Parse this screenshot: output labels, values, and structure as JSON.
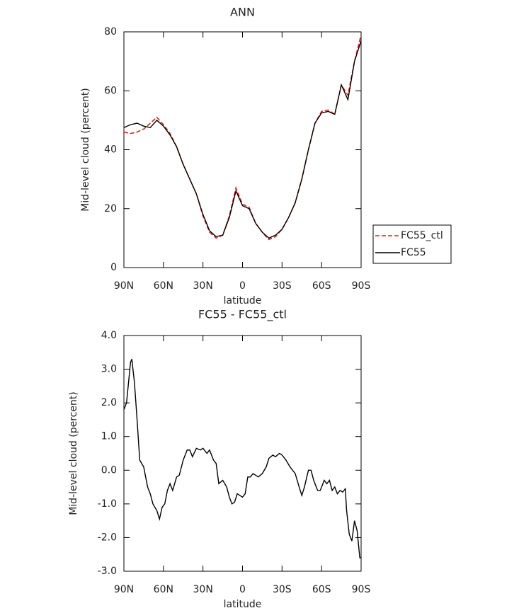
{
  "chart_data": [
    {
      "type": "line",
      "title": "ANN",
      "xlabel": "latitude",
      "ylabel": "Mid-level cloud (percent)",
      "x": [
        90,
        85,
        80,
        75,
        70,
        65,
        60,
        55,
        50,
        45,
        40,
        35,
        30,
        25,
        20,
        15,
        10,
        5,
        0,
        -5,
        -10,
        -15,
        -20,
        -25,
        -30,
        -35,
        -40,
        -45,
        -50,
        -55,
        -60,
        -65,
        -70,
        -75,
        -80,
        -85,
        -90
      ],
      "series": [
        {
          "name": "FC55_ctl",
          "color": "#e0201b",
          "line_style": "dashed",
          "values": [
            46,
            45.5,
            46,
            47,
            49,
            51,
            48.5,
            45.5,
            41,
            35,
            30,
            25,
            17.5,
            12,
            10,
            11,
            17.5,
            27,
            21.5,
            20.5,
            15,
            12,
            9.5,
            10.5,
            13,
            17,
            22,
            30,
            40,
            49,
            53,
            53.5,
            52,
            62,
            58.5,
            70,
            79
          ]
        },
        {
          "name": "FC55",
          "color": "#000000",
          "line_style": "solid",
          "values": [
            47.5,
            48.5,
            49,
            48,
            47.5,
            50,
            48,
            45,
            41,
            35,
            30,
            25,
            18,
            12.5,
            10.5,
            11,
            17,
            26,
            21,
            20,
            15,
            12,
            10,
            11,
            13,
            17,
            22,
            30,
            40,
            49,
            52.5,
            53,
            52,
            62,
            57,
            70,
            77
          ]
        }
      ],
      "xlim": [
        90,
        -90
      ],
      "xticks": [
        {
          "value": 90,
          "label": "90N"
        },
        {
          "value": 60,
          "label": "60N"
        },
        {
          "value": 30,
          "label": "30N"
        },
        0,
        {
          "value": -30,
          "label": "30S"
        },
        {
          "value": -60,
          "label": "60S"
        },
        {
          "value": -90,
          "label": "90S"
        }
      ],
      "ylim": [
        0,
        80
      ],
      "yticks": [
        0,
        20,
        40,
        60,
        80
      ],
      "legend": "right",
      "grid": false
    },
    {
      "type": "line",
      "title": "FC55 - FC55_ctl",
      "xlabel": "latitude",
      "ylabel": "Mid-level cloud (percent)",
      "x": [
        90,
        88,
        85,
        84,
        82,
        80,
        78,
        75,
        72,
        70,
        68,
        65,
        63,
        61,
        59,
        57,
        55,
        53,
        50,
        48,
        45,
        42,
        40,
        38,
        35,
        32,
        30,
        27,
        25,
        22,
        20,
        18,
        15,
        12,
        10,
        8,
        6,
        4,
        2,
        0,
        -2,
        -4,
        -6,
        -8,
        -10,
        -12,
        -15,
        -18,
        -20,
        -23,
        -25,
        -28,
        -30,
        -33,
        -36,
        -40,
        -43,
        -45,
        -47,
        -50,
        -52,
        -54,
        -57,
        -59,
        -62,
        -64,
        -66,
        -68,
        -70,
        -72,
        -74,
        -76,
        -78,
        -79,
        -81,
        -83,
        -84,
        -85,
        -87,
        -89,
        -90
      ],
      "series": [
        {
          "color": "#000000",
          "line_style": "solid",
          "values": [
            1.8,
            2.0,
            3.2,
            3.3,
            2.6,
            1.5,
            0.3,
            0.1,
            -0.5,
            -0.7,
            -1.0,
            -1.2,
            -1.45,
            -1.1,
            -1.0,
            -0.6,
            -0.4,
            -0.6,
            -0.2,
            -0.15,
            0.3,
            0.6,
            0.6,
            0.4,
            0.65,
            0.6,
            0.65,
            0.5,
            0.6,
            0.3,
            0.2,
            -0.4,
            -0.3,
            -0.5,
            -0.8,
            -1.0,
            -0.95,
            -0.7,
            -0.75,
            -0.8,
            -0.7,
            -0.2,
            -0.2,
            -0.1,
            -0.15,
            -0.2,
            -0.1,
            0.1,
            0.35,
            0.45,
            0.4,
            0.5,
            0.45,
            0.3,
            0.1,
            -0.1,
            -0.5,
            -0.75,
            -0.5,
            0.0,
            0.0,
            -0.3,
            -0.6,
            -0.6,
            -0.3,
            -0.4,
            -0.3,
            -0.6,
            -0.5,
            -0.7,
            -0.6,
            -0.65,
            -0.55,
            -1.2,
            -1.9,
            -2.1,
            -1.8,
            -1.5,
            -1.8,
            -2.6,
            -2.6
          ]
        }
      ],
      "xlim": [
        90,
        -90
      ],
      "xticks": [
        {
          "value": 90,
          "label": "90N"
        },
        {
          "value": 60,
          "label": "60N"
        },
        {
          "value": 30,
          "label": "30N"
        },
        0,
        {
          "value": -30,
          "label": "30S"
        },
        {
          "value": -60,
          "label": "60S"
        },
        {
          "value": -90,
          "label": "90S"
        }
      ],
      "ylim": [
        -3,
        4
      ],
      "yticks": [
        {
          "value": -3,
          "label": "-3.0"
        },
        {
          "value": -2,
          "label": "-2.0"
        },
        {
          "value": -1,
          "label": "-1.0"
        },
        {
          "value": 0,
          "label": "0.0"
        },
        {
          "value": 1,
          "label": "1.0"
        },
        {
          "value": 2,
          "label": "2.0"
        },
        {
          "value": 3,
          "label": "3.0"
        },
        {
          "value": 4,
          "label": "4.0"
        }
      ],
      "grid": false
    }
  ]
}
